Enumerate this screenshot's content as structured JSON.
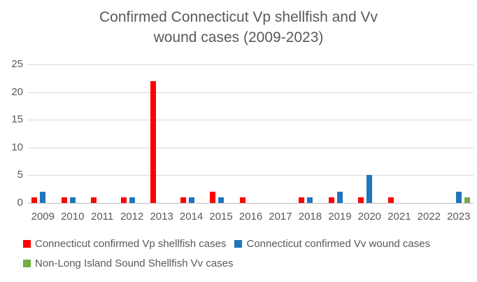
{
  "title": {
    "line1": "Confirmed Connecticut Vp shellfish and Vv",
    "line2": "wound cases (2009-2023)"
  },
  "colors": {
    "title_text": "#595959",
    "axis_text": "#595959",
    "gridline": "#d9d9d9",
    "axis_line": "#bfbfbf",
    "background": "#ffffff",
    "series_red": "#ff0000",
    "series_blue": "#2175bc",
    "series_green": "#70ad47"
  },
  "chart_data": {
    "type": "bar",
    "title": "Confirmed Connecticut Vp shellfish and Vv wound cases (2009-2023)",
    "categories": [
      "2009",
      "2010",
      "2011",
      "2012",
      "2013",
      "2014",
      "2015",
      "2016",
      "2017",
      "2018",
      "2019",
      "2020",
      "2021",
      "2022",
      "2023"
    ],
    "series": [
      {
        "name": "Connecticut confirmed Vp shellfish cases",
        "color": "#ff0000",
        "values": [
          1,
          1,
          1,
          1,
          22,
          1,
          2,
          1,
          0,
          1,
          1,
          1,
          1,
          0,
          0
        ]
      },
      {
        "name": "Connecticut confirmed Vv wound cases",
        "color": "#2175bc",
        "values": [
          2,
          1,
          0,
          1,
          0,
          1,
          1,
          0,
          0,
          1,
          2,
          5,
          0,
          0,
          2
        ]
      },
      {
        "name": "Non-Long Island Sound Shellfish Vv cases",
        "color": "#70ad47",
        "values": [
          0,
          0,
          0,
          0,
          0,
          0,
          0,
          0,
          0,
          0,
          0,
          0,
          0,
          0,
          1
        ]
      }
    ],
    "xlabel": "",
    "ylabel": "",
    "ylim": [
      0,
      25
    ],
    "yticks": [
      0,
      5,
      10,
      15,
      20,
      25
    ],
    "grid": true,
    "legend_position": "bottom"
  }
}
